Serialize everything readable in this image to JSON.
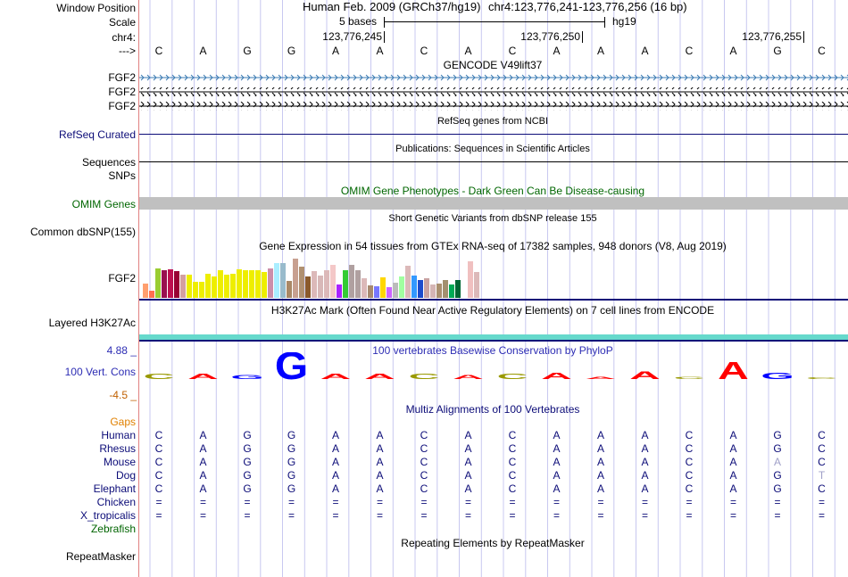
{
  "header": {
    "window_position_label": "Window Position",
    "assembly": "Human Feb. 2009 (GRCh37/hg19)",
    "position": "chr4:123,776,241-123,776,256 (16 bp)",
    "scale_label": "Scale",
    "scale_text": "5 bases",
    "scale_db": "hg19",
    "chrom_label": "chr4:",
    "strand_label": "--->",
    "ticks": [
      "123,776,245",
      "123,776,250",
      "123,776,255"
    ]
  },
  "bases": [
    "C",
    "A",
    "G",
    "G",
    "A",
    "A",
    "C",
    "A",
    "C",
    "A",
    "A",
    "A",
    "C",
    "A",
    "G",
    "C"
  ],
  "tracks": {
    "gencode": {
      "title": "GENCODE V49lift37",
      "genes": [
        "FGF2",
        "FGF2",
        "FGF2"
      ],
      "gene_colors": [
        "#3b7bb3",
        "#000000",
        "#000000"
      ]
    },
    "refseq": {
      "title": "RefSeq genes from NCBI",
      "label": "RefSeq Curated"
    },
    "pubs": {
      "title": "Publications: Sequences in Scientific Articles",
      "label": "Sequences"
    },
    "snps_label": "SNPs",
    "omim": {
      "title": "OMIM Gene Phenotypes - Dark Green Can Be Disease-causing",
      "label": "OMIM Genes"
    },
    "dbsnp": {
      "title": "Short Genetic Variants from dbSNP release 155",
      "label": "Common dbSNP(155)"
    },
    "gtex": {
      "title": "Gene Expression in 54 tissues from GTEx RNA-seq of 17382 samples, 948 donors (V8, Aug 2019)",
      "label": "FGF2",
      "values": [
        16,
        8,
        33,
        31,
        32,
        30,
        26,
        26,
        18,
        18,
        27,
        24,
        31,
        26,
        27,
        32,
        31,
        31,
        31,
        29,
        33,
        39,
        39,
        19,
        44,
        35,
        24,
        30,
        25,
        31,
        37,
        15,
        31,
        37,
        31,
        22,
        14,
        13,
        23,
        12,
        17,
        24,
        36,
        25,
        20,
        22,
        15,
        16,
        20,
        15,
        20,
        23,
        41,
        29
      ],
      "colors": [
        "#ff9f6f",
        "#ff6f4f",
        "#9acd32",
        "#9a0f4f",
        "#bd0f4f",
        "#990033",
        "#d4a0a0",
        "#eeee00",
        "#eeee00",
        "#eeee00",
        "#eeee00",
        "#eeee00",
        "#eeee00",
        "#eeee00",
        "#eeee00",
        "#eeee00",
        "#eeee00",
        "#eeee00",
        "#eeee00",
        "#eeee00",
        "#cc8faa",
        "#aaeeff",
        "#99bbcc",
        "#aa8866",
        "#c8a090",
        "#b09070",
        "#8b5a2b",
        "#dcb9b9",
        "#d8b8b8",
        "#dcb9b9",
        "#f4c8c8",
        "#aa22ff",
        "#33cc33",
        "#b0a0a0",
        "#b0a0a0",
        "#dcb9b9",
        "#a88a70",
        "#7777ff",
        "#ffd700",
        "#cc66ff",
        "#bbbbbb",
        "#a0ffa0",
        "#dcb9b9",
        "#3399ff",
        "#1c4bcc",
        "#c9a2a2",
        "#d5b5b5",
        "#aa9070",
        "#a3906f",
        "#00aa55",
        "#006633",
        "#ffffff",
        "#f0c0c0",
        "#dcb9b9"
      ]
    },
    "h3k27ac": {
      "title": "H3K27Ac Mark (Often Found Near Active Regulatory Elements) on 7 cell lines from ENCODE",
      "label": "Layered H3K27Ac"
    },
    "cons": {
      "title": "100 vertebrates Basewise Conservation by PhyloP",
      "label": "100 Vert. Cons",
      "max": "4.88 _",
      "min": "-4.5 _",
      "scores": [
        0.4,
        0.4,
        0.3,
        2.2,
        0.4,
        0.4,
        0.4,
        0.3,
        0.4,
        0.5,
        0.2,
        0.6,
        0.2,
        1.4,
        0.5,
        0
      ]
    },
    "multiz": {
      "title": "Multiz Alignments of 100 Vertebrates",
      "gaps_label": "Gaps",
      "species": [
        {
          "name": "Human",
          "row": "CAGGAACACAAACAGC"
        },
        {
          "name": "Rhesus",
          "row": "CAGGAACACAAACAGC"
        },
        {
          "name": "Mouse",
          "row": "CAGGAACACAAACAAC"
        },
        {
          "name": "Dog",
          "row": "CAGGAACACAAACAGT"
        },
        {
          "name": "Elephant",
          "row": "CAGGAACACAAACAGC"
        },
        {
          "name": "Chicken",
          "row": "================"
        },
        {
          "name": "X_tropicalis",
          "row": "================"
        },
        {
          "name": "Zebrafish",
          "row": ""
        }
      ]
    },
    "rmsk": {
      "title": "Repeating Elements by RepeatMasker",
      "label": "RepeatMasker"
    }
  },
  "colors": {
    "gene_blue": "#3b7bb3",
    "refseq_navy": "#0c0c78",
    "omim_green": "#006600",
    "omim_bar": "#c0c0c0",
    "h3k27ac_cyan": "#66d9cc",
    "cons_blue": "#2d2db4",
    "gaps_orange": "#e08000",
    "species_navy": "#0c0c78",
    "zebrafish_green": "#006400",
    "divider_navy": "#0c0c78",
    "base_A": "#ff0000",
    "base_C": "#999900",
    "base_G": "#0000ff",
    "base_T": "#aaaaaa"
  }
}
